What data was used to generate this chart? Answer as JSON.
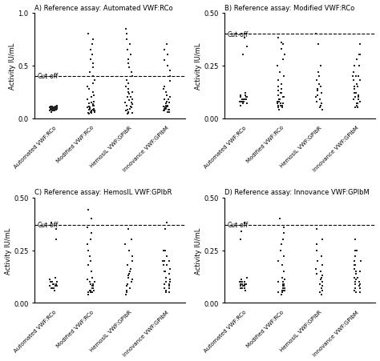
{
  "panels": [
    {
      "label": "A",
      "title": "Reference assay: Automated VWF:RCo",
      "cutoff": 0.4,
      "ylim": [
        0.0,
        1.0
      ],
      "yticks": [
        0.0,
        0.5,
        1.0
      ],
      "ytick_fmt": "A",
      "ylabel": "Activity IU/mL"
    },
    {
      "label": "B",
      "title": "Reference assay: Modified VWF:RCo",
      "cutoff": 0.4,
      "ylim": [
        0.0,
        0.5
      ],
      "yticks": [
        0.0,
        0.25,
        0.5
      ],
      "ytick_fmt": "B",
      "ylabel": "Activity IU/mL"
    },
    {
      "label": "C",
      "title": "Reference assay: HemosIL VWF:GPIbR",
      "cutoff": 0.37,
      "ylim": [
        0.0,
        0.5
      ],
      "yticks": [
        0.0,
        0.25,
        0.5
      ],
      "ytick_fmt": "B",
      "ylabel": "Activity IU/mL"
    },
    {
      "label": "D",
      "title": "Reference assay: Innovance VWF:GPIbM",
      "cutoff": 0.37,
      "ylim": [
        0.0,
        0.5
      ],
      "yticks": [
        0.0,
        0.25,
        0.5
      ],
      "ytick_fmt": "B",
      "ylabel": "Activity IU/mL"
    }
  ],
  "x_labels": [
    "Automated VWF:RCo",
    "Modified VWF:RCo",
    "HemosIL VWF:GPIbR",
    "Innovance VWF:GPIbM"
  ],
  "dot_color": "#222222",
  "dot_size": 3,
  "panel_A_data": [
    [
      0.06,
      0.07,
      0.08,
      0.08,
      0.09,
      0.09,
      0.1,
      0.1,
      0.1,
      0.11,
      0.11,
      0.11,
      0.12,
      0.08,
      0.09,
      0.09,
      0.1,
      0.1,
      0.07,
      0.08,
      0.09,
      0.1,
      0.1,
      0.08,
      0.09,
      0.08,
      0.1,
      0.1,
      0.11,
      0.07,
      0.08,
      0.09,
      0.1,
      0.07,
      0.08,
      0.09,
      0.1,
      0.11,
      0.08,
      0.09
    ],
    [
      0.04,
      0.05,
      0.06,
      0.07,
      0.08,
      0.09,
      0.1,
      0.12,
      0.14,
      0.16,
      0.18,
      0.2,
      0.22,
      0.25,
      0.28,
      0.3,
      0.33,
      0.36,
      0.4,
      0.44,
      0.48,
      0.52,
      0.56,
      0.6,
      0.65,
      0.7,
      0.75,
      0.8,
      0.06,
      0.07,
      0.08,
      0.09,
      0.1,
      0.11,
      0.12,
      0.13,
      0.15,
      0.05,
      0.06,
      0.07
    ],
    [
      0.04,
      0.05,
      0.06,
      0.08,
      0.1,
      0.12,
      0.15,
      0.18,
      0.2,
      0.23,
      0.25,
      0.28,
      0.3,
      0.33,
      0.36,
      0.4,
      0.44,
      0.48,
      0.52,
      0.56,
      0.6,
      0.65,
      0.7,
      0.75,
      0.8,
      0.85,
      0.05,
      0.07,
      0.09,
      0.11,
      0.13,
      0.15,
      0.17,
      0.2,
      0.25,
      0.3
    ],
    [
      0.06,
      0.07,
      0.08,
      0.09,
      0.1,
      0.11,
      0.12,
      0.14,
      0.16,
      0.18,
      0.2,
      0.22,
      0.25,
      0.28,
      0.3,
      0.35,
      0.4,
      0.45,
      0.5,
      0.55,
      0.6,
      0.65,
      0.7,
      0.08,
      0.1,
      0.12,
      0.15,
      0.18,
      0.06,
      0.07,
      0.09,
      0.11
    ]
  ],
  "panel_B_data": [
    [
      0.06,
      0.07,
      0.08,
      0.08,
      0.09,
      0.09,
      0.1,
      0.1,
      0.1,
      0.11,
      0.11,
      0.12,
      0.08,
      0.09,
      0.09,
      0.1,
      0.07,
      0.08,
      0.09,
      0.1,
      0.08,
      0.09,
      0.08,
      0.1,
      0.07,
      0.08,
      0.09,
      0.3,
      0.34,
      0.38
    ],
    [
      0.04,
      0.05,
      0.06,
      0.07,
      0.08,
      0.09,
      0.1,
      0.12,
      0.14,
      0.16,
      0.18,
      0.2,
      0.22,
      0.25,
      0.28,
      0.3,
      0.33,
      0.36,
      0.05,
      0.06,
      0.07,
      0.08,
      0.09,
      0.1,
      0.11,
      0.12,
      0.13,
      0.15,
      0.05,
      0.06,
      0.07,
      0.35,
      0.38
    ],
    [
      0.04,
      0.05,
      0.06,
      0.08,
      0.1,
      0.12,
      0.14,
      0.16,
      0.18,
      0.2,
      0.22,
      0.25,
      0.07,
      0.09,
      0.11,
      0.13,
      0.15,
      0.35,
      0.4
    ],
    [
      0.05,
      0.06,
      0.07,
      0.08,
      0.09,
      0.1,
      0.11,
      0.12,
      0.14,
      0.16,
      0.18,
      0.2,
      0.22,
      0.25,
      0.28,
      0.3,
      0.1,
      0.12,
      0.15,
      0.18,
      0.2,
      0.05,
      0.07,
      0.09,
      0.15,
      0.2,
      0.25,
      0.3,
      0.35
    ]
  ],
  "panel_C_data": [
    [
      0.06,
      0.07,
      0.08,
      0.08,
      0.09,
      0.09,
      0.1,
      0.1,
      0.1,
      0.11,
      0.12,
      0.08,
      0.09,
      0.09,
      0.1,
      0.07,
      0.08,
      0.09,
      0.1,
      0.08,
      0.07,
      0.09,
      0.1,
      0.3,
      0.35,
      0.38
    ],
    [
      0.04,
      0.05,
      0.06,
      0.07,
      0.08,
      0.09,
      0.1,
      0.12,
      0.15,
      0.18,
      0.2,
      0.22,
      0.25,
      0.28,
      0.3,
      0.33,
      0.36,
      0.4,
      0.44,
      0.05,
      0.06,
      0.07,
      0.08,
      0.09,
      0.1,
      0.11,
      0.05,
      0.06
    ],
    [
      0.04,
      0.05,
      0.06,
      0.08,
      0.1,
      0.12,
      0.14,
      0.16,
      0.18,
      0.2,
      0.22,
      0.25,
      0.28,
      0.3,
      0.35,
      0.07,
      0.09,
      0.11,
      0.13,
      0.15
    ],
    [
      0.05,
      0.06,
      0.07,
      0.08,
      0.09,
      0.1,
      0.11,
      0.12,
      0.14,
      0.16,
      0.18,
      0.2,
      0.22,
      0.25,
      0.1,
      0.12,
      0.15,
      0.18,
      0.2,
      0.05,
      0.07,
      0.09,
      0.15,
      0.2,
      0.25,
      0.35,
      0.38
    ]
  ],
  "panel_D_data": [
    [
      0.06,
      0.07,
      0.08,
      0.08,
      0.09,
      0.09,
      0.1,
      0.1,
      0.11,
      0.11,
      0.12,
      0.08,
      0.09,
      0.09,
      0.1,
      0.07,
      0.08,
      0.09,
      0.1,
      0.08,
      0.07,
      0.09,
      0.1,
      0.3,
      0.34,
      0.38
    ],
    [
      0.04,
      0.05,
      0.06,
      0.07,
      0.08,
      0.09,
      0.1,
      0.12,
      0.15,
      0.18,
      0.2,
      0.22,
      0.25,
      0.28,
      0.3,
      0.33,
      0.36,
      0.4,
      0.05,
      0.06,
      0.07,
      0.08,
      0.09,
      0.1,
      0.11,
      0.05,
      0.06
    ],
    [
      0.04,
      0.05,
      0.06,
      0.08,
      0.1,
      0.12,
      0.14,
      0.16,
      0.18,
      0.2,
      0.22,
      0.25,
      0.28,
      0.3,
      0.07,
      0.09,
      0.11,
      0.13,
      0.15,
      0.35
    ],
    [
      0.05,
      0.06,
      0.07,
      0.08,
      0.09,
      0.1,
      0.11,
      0.12,
      0.14,
      0.16,
      0.18,
      0.2,
      0.22,
      0.25,
      0.1,
      0.12,
      0.15,
      0.18,
      0.05,
      0.07,
      0.09,
      0.15,
      0.2,
      0.25,
      0.3
    ]
  ]
}
